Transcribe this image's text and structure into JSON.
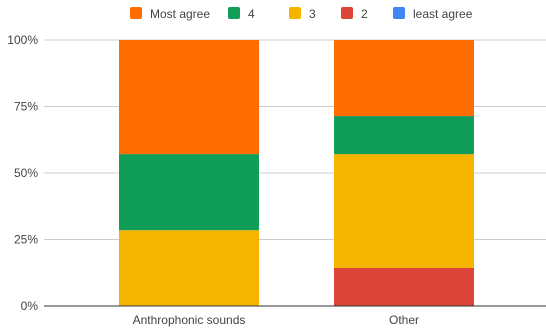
{
  "chart_data": {
    "type": "bar",
    "stacked": "percent",
    "categories": [
      "Anthrophonic sounds",
      "Other"
    ],
    "series": [
      {
        "name": "Most agree",
        "color": "#ff6d01",
        "values": [
          42.9,
          28.6
        ]
      },
      {
        "name": "4",
        "color": "#0f9d58",
        "values": [
          28.6,
          14.3
        ]
      },
      {
        "name": "3",
        "color": "#f4b400",
        "values": [
          28.5,
          42.8
        ]
      },
      {
        "name": "2",
        "color": "#db4437",
        "values": [
          0,
          14.3
        ]
      },
      {
        "name": "least agree",
        "color": "#4285f4",
        "values": [
          0,
          0
        ]
      }
    ],
    "y_ticks": [
      "0%",
      "25%",
      "50%",
      "75%",
      "100%"
    ],
    "ylim": [
      0,
      100
    ],
    "grid": true,
    "legend_position": "top"
  }
}
